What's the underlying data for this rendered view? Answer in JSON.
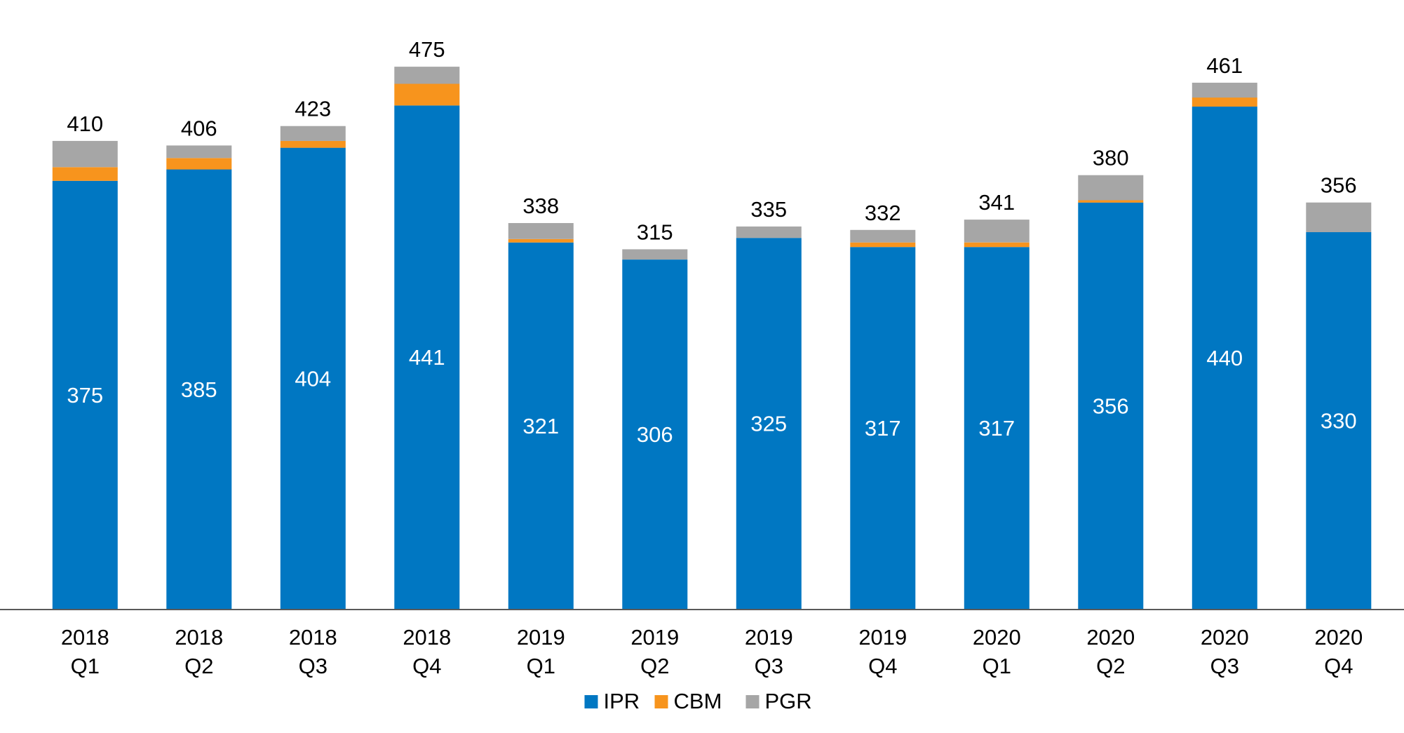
{
  "chart_data": {
    "type": "bar",
    "stacked": true,
    "categories": [
      [
        "2018",
        "Q1"
      ],
      [
        "2018",
        "Q2"
      ],
      [
        "2018",
        "Q3"
      ],
      [
        "2018",
        "Q4"
      ],
      [
        "2019",
        "Q1"
      ],
      [
        "2019",
        "Q2"
      ],
      [
        "2019",
        "Q3"
      ],
      [
        "2019",
        "Q4"
      ],
      [
        "2020",
        "Q1"
      ],
      [
        "2020",
        "Q2"
      ],
      [
        "2020",
        "Q3"
      ],
      [
        "2020",
        "Q4"
      ]
    ],
    "series": [
      {
        "name": "IPR",
        "color": "#0077C2",
        "values": [
          375,
          385,
          404,
          441,
          321,
          306,
          325,
          317,
          317,
          356,
          440,
          330
        ],
        "labels_shown": true
      },
      {
        "name": "CBM",
        "color": "#F7941D",
        "values": [
          12,
          10,
          6,
          19,
          3,
          0,
          0,
          4,
          4,
          2,
          8,
          0
        ],
        "labels_shown": false
      },
      {
        "name": "PGR",
        "color": "#A6A6A6",
        "values": [
          23,
          11,
          13,
          15,
          14,
          9,
          10,
          11,
          20,
          22,
          13,
          26
        ],
        "labels_shown": false
      }
    ],
    "totals": [
      410,
      406,
      423,
      475,
      338,
      315,
      335,
      332,
      341,
      380,
      461,
      356
    ],
    "ylim": [
      0,
      515
    ],
    "grid": false,
    "legend_position": "bottom-center",
    "label_color_inside": "#ffffff",
    "label_color_total": "#000000",
    "axis_color": "#595959"
  }
}
